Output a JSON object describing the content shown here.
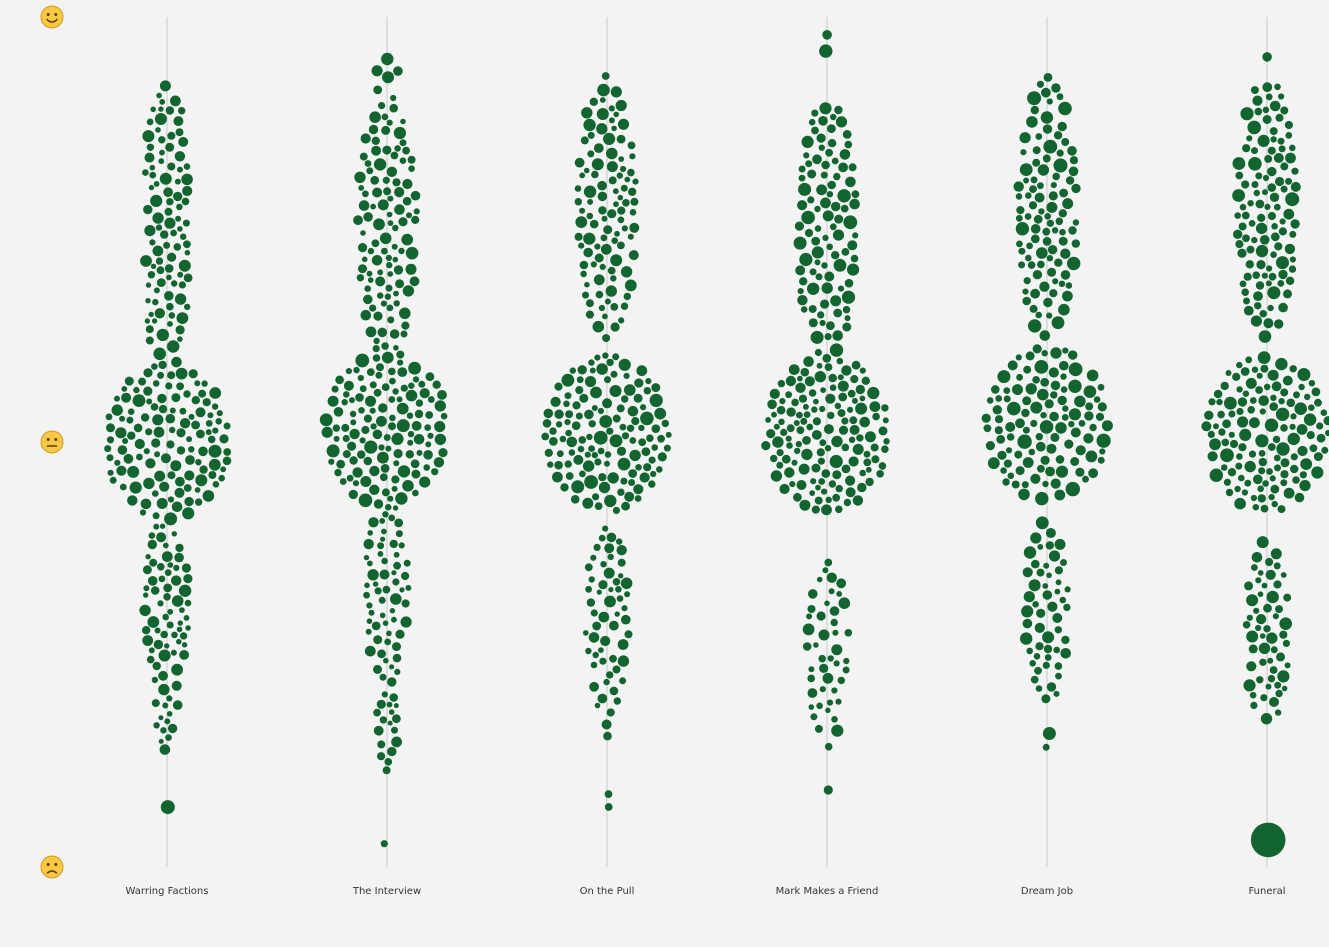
{
  "chart_data": {
    "type": "scatter",
    "subtype": "beeswarm",
    "categories": [
      "Warring Factions",
      "The Interview",
      "On the Pull",
      "Mark Makes a Friend",
      "Dream Job",
      "Funeral"
    ],
    "y_scale": [
      "happy",
      "neutral",
      "sad"
    ],
    "y_icons": [
      "happy-face",
      "neutral-face",
      "sad-face"
    ],
    "ylim": [
      -1,
      1
    ],
    "point_color": "#13652f",
    "grid_color": "#c8c8c8",
    "series": [
      {
        "category": "Warring Factions",
        "points": [
          {
            "y": 0.78,
            "r": 5,
            "count": 1
          },
          {
            "y": 0.62,
            "r": 4.5,
            "count": 60
          },
          {
            "y": 0.37,
            "r": 4.5,
            "count": 70
          },
          {
            "y": 0.0,
            "r": 4.8,
            "count": 260
          },
          {
            "y": -0.38,
            "r": 4.5,
            "count": 75
          },
          {
            "y": -0.62,
            "r": 4,
            "count": 14
          },
          {
            "y": -0.86,
            "r": 7,
            "count": 1
          }
        ]
      },
      {
        "category": "The Interview",
        "points": [
          {
            "y": 0.83,
            "r": 5,
            "count": 12
          },
          {
            "y": 0.5,
            "r": 4.6,
            "count": 120
          },
          {
            "y": 0.03,
            "r": 5,
            "count": 270
          },
          {
            "y": -0.35,
            "r": 4.3,
            "count": 65
          },
          {
            "y": -0.68,
            "r": 4,
            "count": 22
          },
          {
            "y": -0.94,
            "r": 3,
            "count": 1
          }
        ]
      },
      {
        "category": "On the Pull",
        "points": [
          {
            "y": 0.86,
            "r": 4.5,
            "count": 1
          },
          {
            "y": 0.55,
            "r": 4.6,
            "count": 140
          },
          {
            "y": 0.02,
            "r": 5,
            "count": 290
          },
          {
            "y": -0.42,
            "r": 4.3,
            "count": 55
          },
          {
            "y": -0.68,
            "r": 4,
            "count": 6
          },
          {
            "y": -0.85,
            "r": 4.5,
            "count": 2
          }
        ]
      },
      {
        "category": "Mark Makes a Friend",
        "points": [
          {
            "y": 0.93,
            "r": 5.5,
            "count": 3
          },
          {
            "y": 0.5,
            "r": 5,
            "count": 160
          },
          {
            "y": 0.02,
            "r": 4.8,
            "count": 300
          },
          {
            "y": -0.5,
            "r": 4.5,
            "count": 45
          },
          {
            "y": -0.84,
            "r": 7.5,
            "count": 1
          }
        ]
      },
      {
        "category": "Dream Job",
        "points": [
          {
            "y": 0.84,
            "r": 5,
            "count": 8
          },
          {
            "y": 0.55,
            "r": 5,
            "count": 150
          },
          {
            "y": 0.04,
            "r": 5.2,
            "count": 300
          },
          {
            "y": -0.4,
            "r": 4.6,
            "count": 60
          },
          {
            "y": -0.7,
            "r": 5,
            "count": 8
          }
        ]
      },
      {
        "category": "Funeral",
        "points": [
          {
            "y": 0.92,
            "r": 4.5,
            "count": 1
          },
          {
            "y": 0.55,
            "r": 5,
            "count": 170
          },
          {
            "y": 0.02,
            "r": 5,
            "count": 290
          },
          {
            "y": -0.45,
            "r": 4.6,
            "count": 70
          },
          {
            "y": -0.93,
            "r": 13,
            "count": 1
          }
        ]
      }
    ]
  }
}
